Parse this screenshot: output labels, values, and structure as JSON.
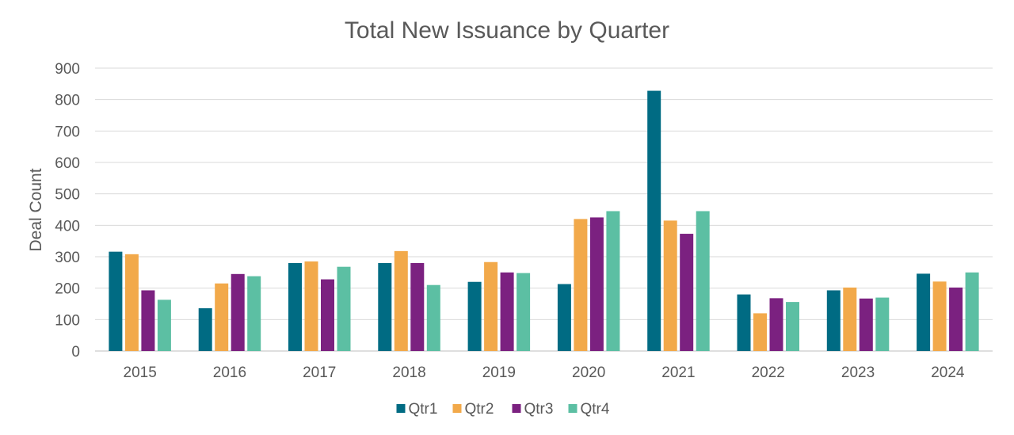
{
  "chart_data": {
    "type": "bar",
    "title": "Total New Issuance by Quarter",
    "xlabel": "",
    "ylabel": "Deal Count",
    "ylim": [
      0,
      900
    ],
    "yticks": [
      "0",
      "100",
      "200",
      "300",
      "400",
      "500",
      "600",
      "700",
      "800",
      "900"
    ],
    "grid": true,
    "legend_position": "bottom",
    "categories": [
      "2015",
      "2016",
      "2017",
      "2018",
      "2019",
      "2020",
      "2021",
      "2022",
      "2023",
      "2024"
    ],
    "series": [
      {
        "name": "Qtr1",
        "color": "#006b83",
        "values": [
          316,
          136,
          280,
          280,
          220,
          213,
          828,
          180,
          193,
          246
        ]
      },
      {
        "name": "Qtr2",
        "color": "#f2a94a",
        "values": [
          308,
          215,
          285,
          318,
          283,
          420,
          415,
          120,
          202,
          221
        ]
      },
      {
        "name": "Qtr3",
        "color": "#7b2180",
        "values": [
          193,
          245,
          228,
          280,
          250,
          425,
          373,
          168,
          167,
          202
        ]
      },
      {
        "name": "Qtr4",
        "color": "#5cbfa3",
        "values": [
          163,
          238,
          268,
          210,
          248,
          445,
          445,
          156,
          170,
          250
        ]
      }
    ]
  }
}
